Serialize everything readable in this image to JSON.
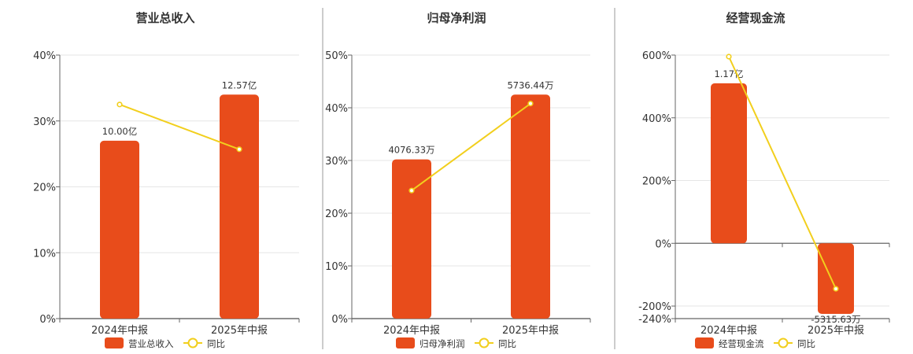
{
  "colors": {
    "bar": "#e84c1b",
    "line": "#f2cf1d",
    "grid": "#e6e6e6",
    "axis": "#666666",
    "divider": "#999999"
  },
  "chart_data": [
    {
      "type": "bar",
      "title": "营业总收入",
      "categories": [
        "2024年中报",
        "2025年中报"
      ],
      "yticks": [
        "40%",
        "30%",
        "20%",
        "10%",
        "0%"
      ],
      "ylim": [
        0,
        40
      ],
      "series": [
        {
          "name": "营业总收入",
          "type": "bar",
          "values": [
            27.0,
            34.0
          ],
          "labels": [
            "10.00亿",
            "12.57亿"
          ]
        },
        {
          "name": "同比",
          "type": "line",
          "values": [
            32.5,
            25.7
          ]
        }
      ]
    },
    {
      "type": "bar",
      "title": "归母净利润",
      "categories": [
        "2024年中报",
        "2025年中报"
      ],
      "yticks": [
        "50%",
        "40%",
        "30%",
        "20%",
        "10%",
        "0%"
      ],
      "ylim": [
        0,
        50
      ],
      "series": [
        {
          "name": "归母净利润",
          "type": "bar",
          "values": [
            30.2,
            42.5
          ],
          "labels": [
            "4076.33万",
            "5736.44万"
          ]
        },
        {
          "name": "同比",
          "type": "line",
          "values": [
            24.3,
            40.8
          ]
        }
      ]
    },
    {
      "type": "bar",
      "title": "经营现金流",
      "categories": [
        "2024年中报",
        "2025年中报"
      ],
      "yticks": [
        "600%",
        "400%",
        "200%",
        "0%",
        "-200%",
        "-240%"
      ],
      "ylim": [
        -240,
        600
      ],
      "series": [
        {
          "name": "经营现金流",
          "type": "bar",
          "values": [
            510,
            -225
          ],
          "labels": [
            "1.17亿",
            "-5315.63万"
          ]
        },
        {
          "name": "同比",
          "type": "line",
          "values": [
            595,
            -145
          ]
        }
      ]
    }
  ]
}
